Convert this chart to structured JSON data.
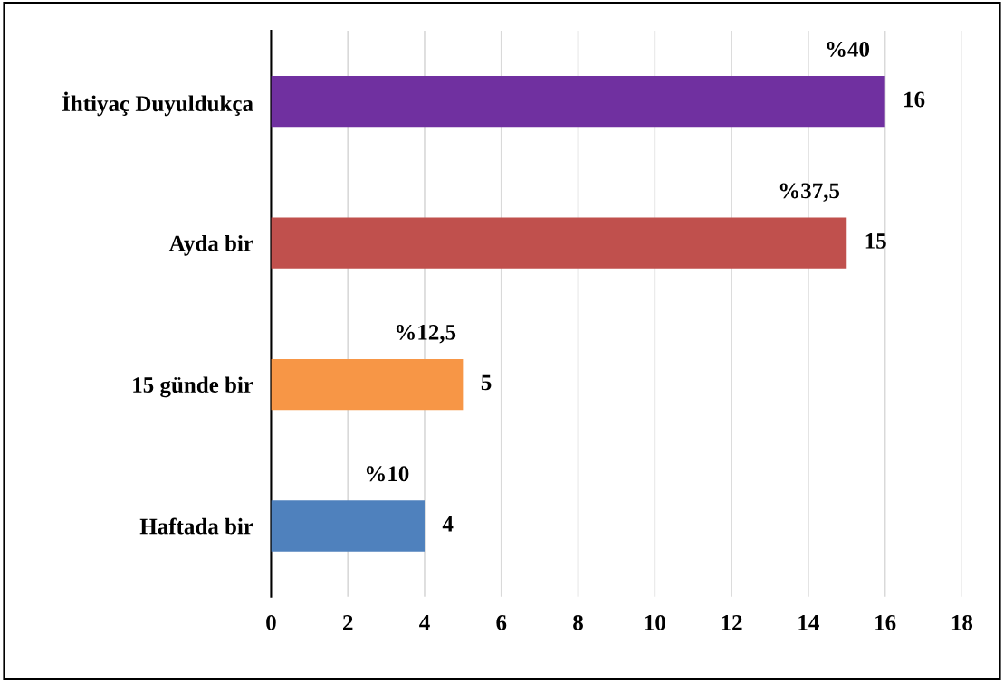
{
  "chart_data": {
    "type": "bar",
    "orientation": "horizontal",
    "categories": [
      "İhtiyaç Duyuldukça",
      "Ayda bir",
      "15 günde bir",
      "Haftada bir"
    ],
    "values": [
      16,
      15,
      5,
      4
    ],
    "colors": [
      "#7030a0",
      "#c0504d",
      "#f79646",
      "#4f81bd"
    ],
    "xlim": [
      0,
      18
    ],
    "xticks": [
      0,
      2,
      4,
      6,
      8,
      10,
      12,
      14,
      16,
      18
    ],
    "grid": "x",
    "data_labels": true,
    "annotations": [
      {
        "text": "%40",
        "x": 16,
        "y": "İhtiyaç Duyuldukça"
      },
      {
        "text": "%37,5",
        "x": 15,
        "y": "Ayda bir"
      },
      {
        "text": "%12,5",
        "x": 5,
        "y": "15 günde bir"
      },
      {
        "text": "%10",
        "x": 4,
        "y": "Haftada bir"
      }
    ]
  }
}
